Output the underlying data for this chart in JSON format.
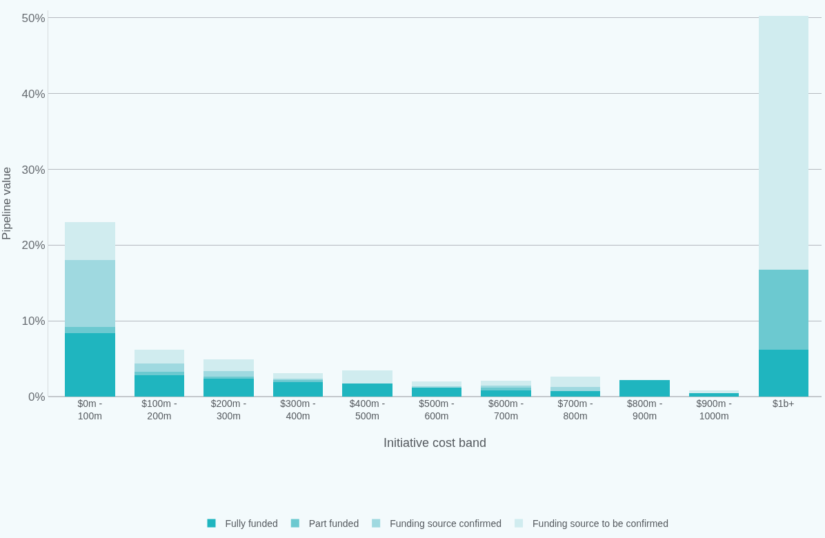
{
  "chart_data": {
    "type": "bar",
    "stacked": true,
    "xlabel": "Initiative cost band",
    "ylabel": "Pipeline value",
    "categories": [
      "$0m -\n100m",
      "$100m -\n200m",
      "$200m -\n300m",
      "$300m -\n400m",
      "$400m -\n500m",
      "$500m -\n600m",
      "$600m -\n700m",
      "$700m -\n800m",
      "$800m -\n900m",
      "$900m -\n1000m",
      "$1b+"
    ],
    "series": [
      {
        "name": "Fully funded",
        "color": "#1fb5bf",
        "values": [
          8.4,
          2.8,
          2.4,
          1.9,
          1.7,
          1.2,
          0.8,
          0.7,
          2.2,
          0.5,
          6.2
        ]
      },
      {
        "name": "Part funded",
        "color": "#6cc9d0",
        "values": [
          0.8,
          0.5,
          0.2,
          0.3,
          0,
          null,
          0.4,
          0,
          0,
          0,
          10.6
        ]
      },
      {
        "name": "Funding source confirmed",
        "color": "#9fd9e0",
        "values": [
          8.8,
          1.1,
          0.8,
          0.2,
          0,
          0.2,
          0.3,
          0.6,
          0,
          0,
          0
        ]
      },
      {
        "name": "Funding source to be confirmed",
        "color": "#d0ecef",
        "values": [
          5.0,
          1.8,
          1.5,
          0.7,
          1.8,
          0.6,
          0.6,
          1.3,
          0,
          0.3,
          33.5
        ]
      }
    ],
    "ylim": [
      0,
      51
    ],
    "yticks": [
      {
        "value": 0,
        "label": "0%"
      },
      {
        "value": 10,
        "label": "10%"
      },
      {
        "value": 20,
        "label": "20%"
      },
      {
        "value": 30,
        "label": "30%"
      },
      {
        "value": 40,
        "label": "40%"
      },
      {
        "value": 50,
        "label": "50%"
      }
    ],
    "grid": "y",
    "legend": "bottom"
  }
}
